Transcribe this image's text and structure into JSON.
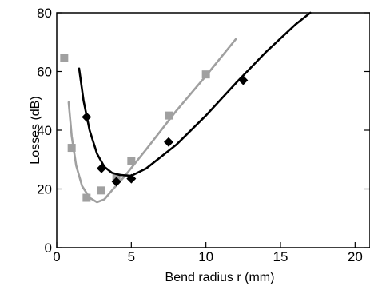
{
  "chart_data": {
    "type": "scatter",
    "title": "",
    "xlabel": "Bend radius r (mm)",
    "ylabel": "Losses (dB)",
    "xlim": [
      0,
      21
    ],
    "ylim": [
      0,
      80
    ],
    "x_ticks": [
      0,
      5,
      10,
      15,
      20
    ],
    "y_ticks": [
      0,
      20,
      40,
      60,
      80
    ],
    "grid": false,
    "legend": "none",
    "series": [
      {
        "marker": "square",
        "color": "#a0a0a0",
        "points": [
          {
            "x": 0.5,
            "y": 64.5
          },
          {
            "x": 1.0,
            "y": 34.0
          },
          {
            "x": 2.0,
            "y": 17.0
          },
          {
            "x": 3.0,
            "y": 19.5
          },
          {
            "x": 4.0,
            "y": 24.0
          },
          {
            "x": 5.0,
            "y": 29.5
          },
          {
            "x": 7.5,
            "y": 45.0
          },
          {
            "x": 10.0,
            "y": 59.0
          }
        ],
        "fit": [
          {
            "x": 0.8,
            "y": 49.5
          },
          {
            "x": 1.0,
            "y": 38.0
          },
          {
            "x": 1.3,
            "y": 28.0
          },
          {
            "x": 1.7,
            "y": 21.0
          },
          {
            "x": 2.2,
            "y": 17.0
          },
          {
            "x": 2.7,
            "y": 15.5
          },
          {
            "x": 3.2,
            "y": 16.5
          },
          {
            "x": 3.7,
            "y": 19.5
          },
          {
            "x": 4.5,
            "y": 24.0
          },
          {
            "x": 6.0,
            "y": 33.5
          },
          {
            "x": 8.0,
            "y": 46.5
          },
          {
            "x": 10.0,
            "y": 58.5
          },
          {
            "x": 12.0,
            "y": 71.0
          }
        ]
      },
      {
        "marker": "diamond",
        "color": "#000000",
        "points": [
          {
            "x": 2.0,
            "y": 44.5
          },
          {
            "x": 3.0,
            "y": 27.0
          },
          {
            "x": 4.0,
            "y": 22.5
          },
          {
            "x": 5.0,
            "y": 23.5
          },
          {
            "x": 7.5,
            "y": 36.0
          },
          {
            "x": 12.5,
            "y": 57.0
          }
        ],
        "fit": [
          {
            "x": 1.5,
            "y": 61.0
          },
          {
            "x": 1.8,
            "y": 50.0
          },
          {
            "x": 2.2,
            "y": 40.0
          },
          {
            "x": 2.7,
            "y": 32.0
          },
          {
            "x": 3.2,
            "y": 27.5
          },
          {
            "x": 3.7,
            "y": 25.5
          },
          {
            "x": 4.2,
            "y": 24.8
          },
          {
            "x": 5.0,
            "y": 24.5
          },
          {
            "x": 6.0,
            "y": 27.0
          },
          {
            "x": 8.0,
            "y": 35.0
          },
          {
            "x": 10.0,
            "y": 45.0
          },
          {
            "x": 12.0,
            "y": 56.0
          },
          {
            "x": 14.0,
            "y": 66.5
          },
          {
            "x": 16.0,
            "y": 76.0
          },
          {
            "x": 17.0,
            "y": 80.0
          }
        ]
      }
    ]
  }
}
